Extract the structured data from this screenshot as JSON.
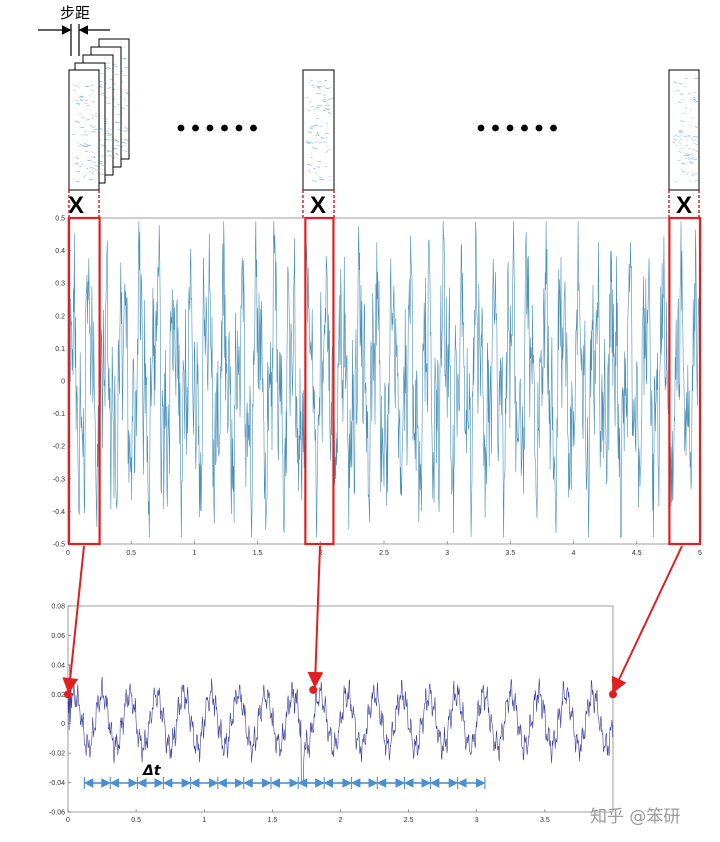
{
  "annotations": {
    "step_label": "步距",
    "x_mark": "X",
    "delta_t": "Δt",
    "watermark": "知乎 @笨研"
  },
  "colors": {
    "signal_top": "#4a90b8",
    "signal_bottom": "#3a3f9a",
    "highlight": "#e02020",
    "interval_arrow": "#4a90d0"
  },
  "chart_data": [
    {
      "type": "line",
      "title": "",
      "xlabel": "",
      "ylabel": "",
      "xlim": [
        0,
        5
      ],
      "ylim": [
        -0.5,
        0.5
      ],
      "xticks": [
        "0",
        "0.5",
        "1",
        "1.5",
        "2",
        "2.5",
        "3",
        "3.5",
        "4",
        "4.5",
        "5"
      ],
      "yticks": [
        "0.5",
        "0.4",
        "0.3",
        "0.2",
        "0.1",
        "0",
        "-0.1",
        "-0.2",
        "-0.3",
        "-0.4",
        "-0.5"
      ],
      "amplitude_range": [
        -0.48,
        0.49
      ],
      "windows_x": [
        [
          0,
          0.25
        ],
        [
          1.87,
          2.1
        ],
        [
          4.75,
          5.0
        ]
      ]
    },
    {
      "type": "line",
      "title": "",
      "xlabel": "",
      "ylabel": "",
      "xlim": [
        0,
        4
      ],
      "ylim": [
        -0.06,
        0.08
      ],
      "xticks": [
        "0",
        "0.5",
        "1",
        "1.5",
        "2",
        "2.5",
        "3",
        "3.5"
      ],
      "yticks": [
        "0.08",
        "0.06",
        "0.04",
        "0.02",
        "0",
        "-0.02",
        "-0.04",
        "-0.06"
      ],
      "marked_points": [
        [
          0,
          0.02
        ],
        [
          1.8,
          0.023
        ],
        [
          4.0,
          0.02
        ]
      ],
      "interval_marks_x": [
        0.12,
        0.31,
        0.51,
        0.7,
        0.9,
        1.1,
        1.29,
        1.49,
        1.69,
        1.88,
        2.08,
        2.27,
        2.47,
        2.66,
        2.86,
        3.06
      ]
    }
  ]
}
